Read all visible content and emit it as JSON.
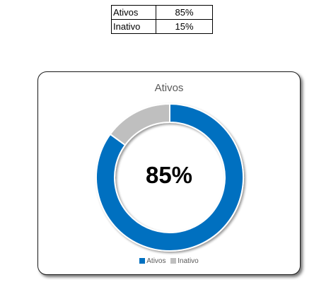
{
  "table": {
    "rows": [
      {
        "label": "Ativos",
        "value": "85%"
      },
      {
        "label": "Inativo",
        "value": "15%"
      }
    ]
  },
  "chart_data": {
    "type": "pie",
    "variant": "donut",
    "title": "Ativos",
    "center_label": "85%",
    "categories": [
      "Ativos",
      "Inativo"
    ],
    "values": [
      85,
      15
    ],
    "unit": "%",
    "colors": [
      "#0070C0",
      "#BFBFBF"
    ],
    "legend": "bottom",
    "legend_entries": [
      "Ativos",
      "Inativo"
    ]
  }
}
